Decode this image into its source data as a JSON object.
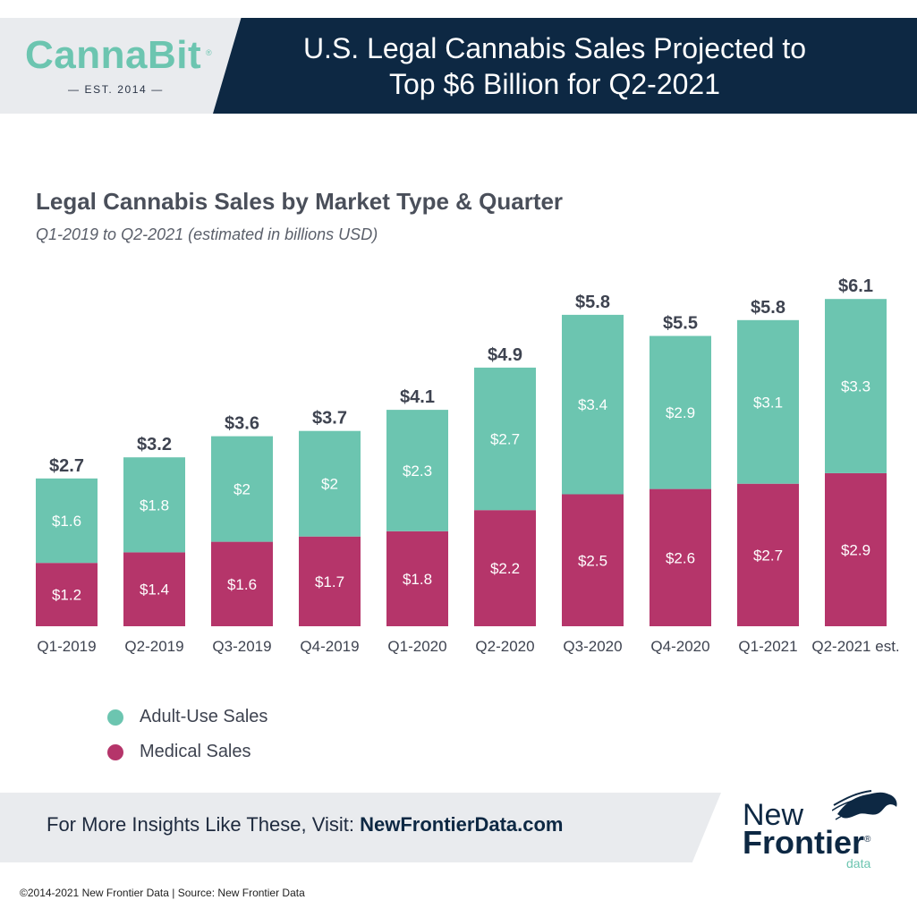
{
  "brand": {
    "logo": "CannaBit",
    "logo_reg": "®",
    "established": "— EST. 2014 —"
  },
  "header": {
    "title_line1": "U.S. Legal Cannabis Sales Projected to",
    "title_line2": "Top $6 Billion for Q2-2021"
  },
  "chart_data": {
    "type": "bar",
    "stacked": true,
    "title": "Legal Cannabis Sales by Market Type & Quarter",
    "subtitle": "Q1-2019 to Q2-2021 (estimated in billions USD)",
    "categories": [
      "Q1-2019",
      "Q2-2019",
      "Q3-2019",
      "Q4-2019",
      "Q1-2020",
      "Q2-2020",
      "Q3-2020",
      "Q4-2020",
      "Q1-2021",
      "Q2-2021 est."
    ],
    "series": [
      {
        "name": "Medical Sales",
        "color": "#b5356a",
        "values": [
          1.2,
          1.4,
          1.6,
          1.7,
          1.8,
          2.2,
          2.5,
          2.6,
          2.7,
          2.9
        ],
        "labels": [
          "$1.2",
          "$1.4",
          "$1.6",
          "$1.7",
          "$1.8",
          "$2.2",
          "$2.5",
          "$2.6",
          "$2.7",
          "$2.9"
        ]
      },
      {
        "name": "Adult-Use Sales",
        "color": "#6cc5b0",
        "values": [
          1.6,
          1.8,
          2,
          2,
          2.3,
          2.7,
          3.4,
          2.9,
          3.1,
          3.3
        ],
        "labels": [
          "$1.6",
          "$1.8",
          "$2",
          "$2",
          "$2.3",
          "$2.7",
          "$3.4",
          "$2.9",
          "$3.1",
          "$3.3"
        ]
      }
    ],
    "totals": [
      2.7,
      3.2,
      3.6,
      3.7,
      4.1,
      4.9,
      5.8,
      5.5,
      5.8,
      6.1
    ],
    "total_labels": [
      "$2.7",
      "$3.2",
      "$3.6",
      "$3.7",
      "$4.1",
      "$4.9",
      "$5.8",
      "$5.5",
      "$5.8",
      "$6.1"
    ],
    "ylim": [
      0,
      6.5
    ],
    "grid": false,
    "legend": "bottom-left"
  },
  "legend": {
    "items": [
      {
        "label": "Adult-Use Sales",
        "color": "#6cc5b0"
      },
      {
        "label": "Medical Sales",
        "color": "#b5356a"
      }
    ]
  },
  "footer": {
    "cta_prefix": "For More Insights Like These, Visit: ",
    "cta_link": "NewFrontierData.com",
    "logo_line1": "New",
    "logo_line2": "Frontier",
    "logo_reg": "®",
    "logo_line3": "data",
    "copyright": "©2014-2021 New Frontier Data | Source: New Frontier Data"
  },
  "colors": {
    "navy": "#0d2843",
    "teal": "#6cc5b0",
    "magenta": "#b5356a",
    "panel_grey": "#e9ebee"
  }
}
